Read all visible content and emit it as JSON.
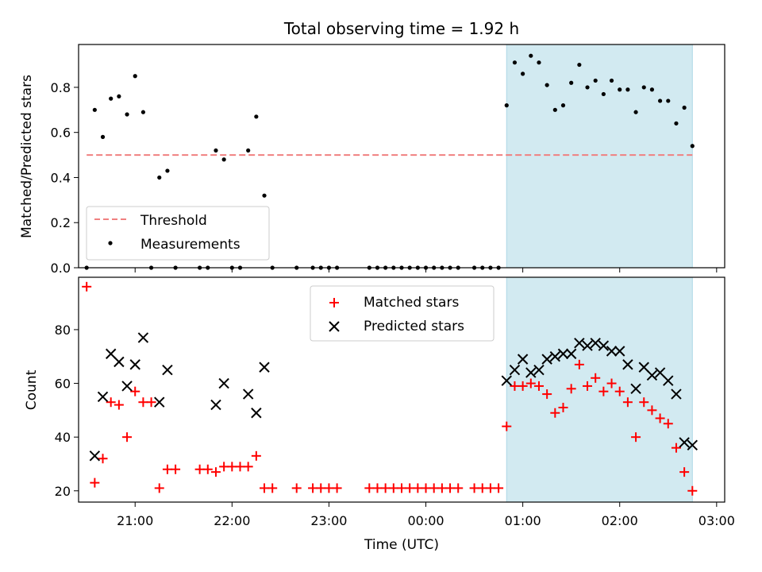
{
  "chart_data": [
    {
      "type": "scatter",
      "title": "Total observing time = 1.92 h",
      "xlabel": "",
      "ylabel": "Matched/Predicted stars",
      "xlim": [
        "20:25",
        "03:05"
      ],
      "ylim": [
        0,
        0.99
      ],
      "yticks": [
        "0.0",
        "0.2",
        "0.4",
        "0.6",
        "0.8"
      ],
      "highlight_span": [
        "00:50",
        "02:45"
      ],
      "highlight_color": "#add8e6",
      "legend": {
        "position": "bottom-left"
      },
      "series": [
        {
          "name": "Threshold",
          "kind": "dashed-line",
          "color": "#f08080",
          "x": [
            "20:30",
            "02:45"
          ],
          "y": [
            0.5,
            0.5
          ]
        },
        {
          "name": "Measurements",
          "kind": "points",
          "color": "#000000",
          "points": [
            [
              "20:30",
              0.0
            ],
            [
              "20:35",
              0.7
            ],
            [
              "20:40",
              0.58
            ],
            [
              "20:45",
              0.75
            ],
            [
              "20:50",
              0.76
            ],
            [
              "20:55",
              0.68
            ],
            [
              "21:00",
              0.85
            ],
            [
              "21:05",
              0.69
            ],
            [
              "21:10",
              0.0
            ],
            [
              "21:15",
              0.4
            ],
            [
              "21:20",
              0.43
            ],
            [
              "21:25",
              0.0
            ],
            [
              "21:40",
              0.0
            ],
            [
              "21:45",
              0.0
            ],
            [
              "21:50",
              0.52
            ],
            [
              "21:55",
              0.48
            ],
            [
              "22:00",
              0.0
            ],
            [
              "22:05",
              0.0
            ],
            [
              "22:10",
              0.52
            ],
            [
              "22:15",
              0.67
            ],
            [
              "22:20",
              0.32
            ],
            [
              "22:25",
              0.0
            ],
            [
              "22:40",
              0.0
            ],
            [
              "22:50",
              0.0
            ],
            [
              "22:55",
              0.0
            ],
            [
              "23:00",
              0.0
            ],
            [
              "23:05",
              0.0
            ],
            [
              "23:25",
              0.0
            ],
            [
              "23:30",
              0.0
            ],
            [
              "23:35",
              0.0
            ],
            [
              "23:40",
              0.0
            ],
            [
              "23:45",
              0.0
            ],
            [
              "23:50",
              0.0
            ],
            [
              "23:55",
              0.0
            ],
            [
              "00:00",
              0.0
            ],
            [
              "00:05",
              0.0
            ],
            [
              "00:10",
              0.0
            ],
            [
              "00:15",
              0.0
            ],
            [
              "00:20",
              0.0
            ],
            [
              "00:30",
              0.0
            ],
            [
              "00:35",
              0.0
            ],
            [
              "00:40",
              0.0
            ],
            [
              "00:45",
              0.0
            ],
            [
              "00:50",
              0.72
            ],
            [
              "00:55",
              0.91
            ],
            [
              "01:00",
              0.86
            ],
            [
              "01:05",
              0.94
            ],
            [
              "01:10",
              0.91
            ],
            [
              "01:15",
              0.81
            ],
            [
              "01:20",
              0.7
            ],
            [
              "01:25",
              0.72
            ],
            [
              "01:30",
              0.82
            ],
            [
              "01:35",
              0.9
            ],
            [
              "01:40",
              0.8
            ],
            [
              "01:45",
              0.83
            ],
            [
              "01:50",
              0.77
            ],
            [
              "01:55",
              0.83
            ],
            [
              "02:00",
              0.79
            ],
            [
              "02:05",
              0.79
            ],
            [
              "02:10",
              0.69
            ],
            [
              "02:15",
              0.8
            ],
            [
              "02:20",
              0.79
            ],
            [
              "02:25",
              0.74
            ],
            [
              "02:30",
              0.74
            ],
            [
              "02:35",
              0.64
            ],
            [
              "02:40",
              0.71
            ],
            [
              "02:45",
              0.54
            ]
          ]
        }
      ]
    },
    {
      "type": "scatter",
      "title": "",
      "xlabel": "Time (UTC)",
      "ylabel": "Count",
      "xlim": [
        "20:25",
        "03:05"
      ],
      "xticks": [
        "21:00",
        "22:00",
        "23:00",
        "00:00",
        "01:00",
        "02:00",
        "03:00"
      ],
      "ylim": [
        15.8,
        99.5
      ],
      "yticks": [
        "20",
        "40",
        "60",
        "80"
      ],
      "highlight_span": [
        "00:50",
        "02:45"
      ],
      "highlight_color": "#add8e6",
      "legend": {
        "position": "top-center"
      },
      "series": [
        {
          "name": "Matched stars",
          "kind": "plus",
          "color": "#ff0000",
          "points": [
            [
              "20:30",
              96
            ],
            [
              "20:35",
              23
            ],
            [
              "20:40",
              32
            ],
            [
              "20:45",
              53
            ],
            [
              "20:50",
              52
            ],
            [
              "20:55",
              40
            ],
            [
              "21:00",
              57
            ],
            [
              "21:05",
              53
            ],
            [
              "21:10",
              53
            ],
            [
              "21:15",
              21
            ],
            [
              "21:20",
              28
            ],
            [
              "21:25",
              28
            ],
            [
              "21:40",
              28
            ],
            [
              "21:45",
              28
            ],
            [
              "21:50",
              27
            ],
            [
              "21:55",
              29
            ],
            [
              "22:00",
              29
            ],
            [
              "22:05",
              29
            ],
            [
              "22:10",
              29
            ],
            [
              "22:15",
              33
            ],
            [
              "22:20",
              21
            ],
            [
              "22:25",
              21
            ],
            [
              "22:40",
              21
            ],
            [
              "22:50",
              21
            ],
            [
              "22:55",
              21
            ],
            [
              "23:00",
              21
            ],
            [
              "23:05",
              21
            ],
            [
              "23:25",
              21
            ],
            [
              "23:30",
              21
            ],
            [
              "23:35",
              21
            ],
            [
              "23:40",
              21
            ],
            [
              "23:45",
              21
            ],
            [
              "23:50",
              21
            ],
            [
              "23:55",
              21
            ],
            [
              "00:00",
              21
            ],
            [
              "00:05",
              21
            ],
            [
              "00:10",
              21
            ],
            [
              "00:15",
              21
            ],
            [
              "00:20",
              21
            ],
            [
              "00:30",
              21
            ],
            [
              "00:35",
              21
            ],
            [
              "00:40",
              21
            ],
            [
              "00:45",
              21
            ],
            [
              "00:50",
              44
            ],
            [
              "00:55",
              59
            ],
            [
              "01:00",
              59
            ],
            [
              "01:05",
              60
            ],
            [
              "01:10",
              59
            ],
            [
              "01:15",
              56
            ],
            [
              "01:20",
              49
            ],
            [
              "01:25",
              51
            ],
            [
              "01:30",
              58
            ],
            [
              "01:35",
              67
            ],
            [
              "01:40",
              59
            ],
            [
              "01:45",
              62
            ],
            [
              "01:50",
              57
            ],
            [
              "01:55",
              60
            ],
            [
              "02:00",
              57
            ],
            [
              "02:05",
              53
            ],
            [
              "02:10",
              40
            ],
            [
              "02:15",
              53
            ],
            [
              "02:20",
              50
            ],
            [
              "02:25",
              47
            ],
            [
              "02:30",
              45
            ],
            [
              "02:35",
              36
            ],
            [
              "02:40",
              27
            ],
            [
              "02:45",
              20
            ]
          ]
        },
        {
          "name": "Predicted stars",
          "kind": "x",
          "color": "#000000",
          "points": [
            [
              "20:35",
              33
            ],
            [
              "20:40",
              55
            ],
            [
              "20:45",
              71
            ],
            [
              "20:50",
              68
            ],
            [
              "20:55",
              59
            ],
            [
              "21:00",
              67
            ],
            [
              "21:05",
              77
            ],
            [
              "21:15",
              53
            ],
            [
              "21:20",
              65
            ],
            [
              "21:50",
              52
            ],
            [
              "21:55",
              60
            ],
            [
              "22:10",
              56
            ],
            [
              "22:15",
              49
            ],
            [
              "22:20",
              66
            ],
            [
              "00:50",
              61
            ],
            [
              "00:55",
              65
            ],
            [
              "01:00",
              69
            ],
            [
              "01:05",
              64
            ],
            [
              "01:10",
              65
            ],
            [
              "01:15",
              69
            ],
            [
              "01:20",
              70
            ],
            [
              "01:25",
              71
            ],
            [
              "01:30",
              71
            ],
            [
              "01:35",
              75
            ],
            [
              "01:40",
              74
            ],
            [
              "01:45",
              75
            ],
            [
              "01:50",
              74
            ],
            [
              "01:55",
              72
            ],
            [
              "02:00",
              72
            ],
            [
              "02:05",
              67
            ],
            [
              "02:10",
              58
            ],
            [
              "02:15",
              66
            ],
            [
              "02:20",
              63
            ],
            [
              "02:25",
              64
            ],
            [
              "02:30",
              61
            ],
            [
              "02:35",
              56
            ],
            [
              "02:40",
              38
            ],
            [
              "02:45",
              37
            ]
          ]
        }
      ]
    }
  ]
}
